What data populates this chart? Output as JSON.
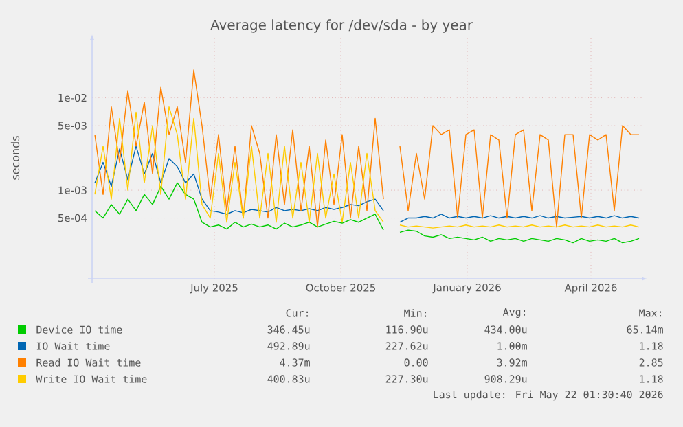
{
  "chart_data": {
    "type": "line",
    "title": "Average latency for /dev/sda - by year",
    "ylabel": "seconds",
    "log": "y",
    "grid": true,
    "legend": "bottom",
    "marker": "none",
    "xlim": [
      "2025-04-03",
      "2026-05-09"
    ],
    "ylim": [
      0.00011,
      0.044
    ],
    "xticks": [
      {
        "value": "2025-07-01",
        "label": "July 2025"
      },
      {
        "value": "2025-10-01",
        "label": "October 2025"
      },
      {
        "value": "2026-01-01",
        "label": "January 2026"
      },
      {
        "value": "2026-04-01",
        "label": "April 2026"
      }
    ],
    "yticks": [
      {
        "value": 0.0005,
        "label": "5e-04"
      },
      {
        "value": 0.001,
        "label": "1e-03"
      },
      {
        "value": 0.005,
        "label": "5e-03"
      },
      {
        "value": 0.01,
        "label": "1e-02"
      }
    ],
    "x": [
      "2025-04-05",
      "2025-04-11",
      "2025-04-17",
      "2025-04-23",
      "2025-04-29",
      "2025-05-05",
      "2025-05-11",
      "2025-05-17",
      "2025-05-23",
      "2025-05-29",
      "2025-06-04",
      "2025-06-10",
      "2025-06-16",
      "2025-06-22",
      "2025-06-28",
      "2025-07-04",
      "2025-07-10",
      "2025-07-16",
      "2025-07-22",
      "2025-07-28",
      "2025-08-03",
      "2025-08-09",
      "2025-08-15",
      "2025-08-21",
      "2025-08-27",
      "2025-09-02",
      "2025-09-08",
      "2025-09-14",
      "2025-09-20",
      "2025-09-26",
      "2025-10-02",
      "2025-10-08",
      "2025-10-14",
      "2025-10-20",
      "2025-10-26",
      "2025-11-01",
      "2025-11-07",
      "2025-11-13",
      "2025-11-19",
      "2025-11-25",
      "2025-12-01",
      "2025-12-07",
      "2025-12-13",
      "2025-12-19",
      "2025-12-25",
      "2025-12-31",
      "2026-01-06",
      "2026-01-12",
      "2026-01-18",
      "2026-01-24",
      "2026-01-30",
      "2026-02-05",
      "2026-02-11",
      "2026-02-17",
      "2026-02-23",
      "2026-03-01",
      "2026-03-07",
      "2026-03-13",
      "2026-03-19",
      "2026-03-25",
      "2026-03-31",
      "2026-04-06",
      "2026-04-12",
      "2026-04-18",
      "2026-04-24",
      "2026-04-30",
      "2026-05-06"
    ],
    "series": [
      {
        "name": "Device IO time",
        "color": "#00cc00",
        "values": [
          0.0006,
          0.0005,
          0.0007,
          0.00055,
          0.0008,
          0.0006,
          0.0009,
          0.0007,
          0.0011,
          0.0008,
          0.0012,
          0.0009,
          0.0008,
          0.00045,
          0.0004,
          0.00042,
          0.00038,
          0.00045,
          0.0004,
          0.00043,
          0.0004,
          0.00042,
          0.00038,
          0.00044,
          0.0004,
          0.00042,
          0.00045,
          0.0004,
          0.00043,
          0.00046,
          0.00044,
          0.00048,
          0.00045,
          0.0005,
          0.00055,
          0.00037,
          null,
          0.00035,
          0.00037,
          0.00036,
          0.00032,
          0.00031,
          0.00033,
          0.0003,
          0.00031,
          0.0003,
          0.00029,
          0.00031,
          0.00028,
          0.0003,
          0.00029,
          0.0003,
          0.00028,
          0.0003,
          0.00029,
          0.00028,
          0.0003,
          0.00029,
          0.00027,
          0.0003,
          0.00028,
          0.00029,
          0.00028,
          0.0003,
          0.00027,
          0.00028,
          0.0003
        ]
      },
      {
        "name": "IO Wait time",
        "color": "#0066b3",
        "values": [
          0.0012,
          0.002,
          0.0011,
          0.0028,
          0.0013,
          0.003,
          0.0015,
          0.0025,
          0.0012,
          0.0022,
          0.0018,
          0.0012,
          0.0015,
          0.0008,
          0.0006,
          0.00058,
          0.00055,
          0.0006,
          0.00057,
          0.00062,
          0.0006,
          0.00058,
          0.00065,
          0.0006,
          0.00062,
          0.0006,
          0.00063,
          0.0006,
          0.00065,
          0.00062,
          0.00065,
          0.0007,
          0.00068,
          0.00075,
          0.0008,
          0.0006,
          null,
          0.00045,
          0.0005,
          0.0005,
          0.00052,
          0.0005,
          0.00055,
          0.0005,
          0.00052,
          0.0005,
          0.00052,
          0.0005,
          0.00053,
          0.0005,
          0.00052,
          0.0005,
          0.00052,
          0.0005,
          0.00053,
          0.0005,
          0.00052,
          0.0005,
          0.00051,
          0.00052,
          0.0005,
          0.00052,
          0.0005,
          0.00053,
          0.0005,
          0.00052,
          0.0005
        ]
      },
      {
        "name": "Read IO Wait time",
        "color": "#ff8000",
        "values": [
          0.004,
          0.0009,
          0.008,
          0.002,
          0.012,
          0.003,
          0.009,
          0.0015,
          0.013,
          0.004,
          0.008,
          0.002,
          0.02,
          0.005,
          0.0008,
          0.004,
          0.0006,
          0.003,
          0.0005,
          0.005,
          0.0025,
          0.0005,
          0.004,
          0.0007,
          0.0045,
          0.0006,
          0.003,
          0.0004,
          0.0035,
          0.0007,
          0.004,
          0.0005,
          0.003,
          0.0006,
          0.006,
          0.0008,
          null,
          0.003,
          0.0006,
          0.0025,
          0.0008,
          0.005,
          0.004,
          0.0045,
          0.0005,
          0.004,
          0.0045,
          0.0005,
          0.004,
          0.0035,
          0.0005,
          0.004,
          0.0045,
          0.0006,
          0.004,
          0.0035,
          0.0004,
          0.004,
          0.004,
          0.0005,
          0.004,
          0.0035,
          0.004,
          0.0006,
          0.005,
          0.004,
          0.004
        ]
      },
      {
        "name": "Write IO Wait time",
        "color": "#ffcc00",
        "values": [
          0.0009,
          0.003,
          0.0008,
          0.006,
          0.001,
          0.007,
          0.0012,
          0.005,
          0.0009,
          0.008,
          0.004,
          0.0008,
          0.006,
          0.0007,
          0.0005,
          0.0025,
          0.00045,
          0.002,
          0.0005,
          0.003,
          0.0005,
          0.0025,
          0.00045,
          0.003,
          0.0005,
          0.002,
          0.00045,
          0.0025,
          0.0005,
          0.0015,
          0.00045,
          0.002,
          0.0005,
          0.0025,
          0.0006,
          0.00045,
          null,
          0.00042,
          0.0004,
          0.00041,
          0.0004,
          0.00039,
          0.0004,
          0.00041,
          0.0004,
          0.00042,
          0.0004,
          0.00041,
          0.0004,
          0.00042,
          0.0004,
          0.00041,
          0.0004,
          0.00042,
          0.0004,
          0.00041,
          0.0004,
          0.00042,
          0.0004,
          0.00041,
          0.0004,
          0.00042,
          0.0004,
          0.00041,
          0.0004,
          0.00042,
          0.0004
        ]
      }
    ],
    "annotations": [
      "Cur:",
      "Min:",
      "Avg:",
      "Max:",
      "346.45u",
      "116.90u",
      "434.00u",
      "65.14m",
      "492.89u",
      "227.62u",
      "1.00m",
      "1.18",
      "4.37m",
      "0.00",
      "3.92m",
      "2.85",
      "400.83u",
      "227.30u",
      "908.29u",
      "1.18",
      "Last update: Fri May 22 01:30:40 2026"
    ]
  }
}
